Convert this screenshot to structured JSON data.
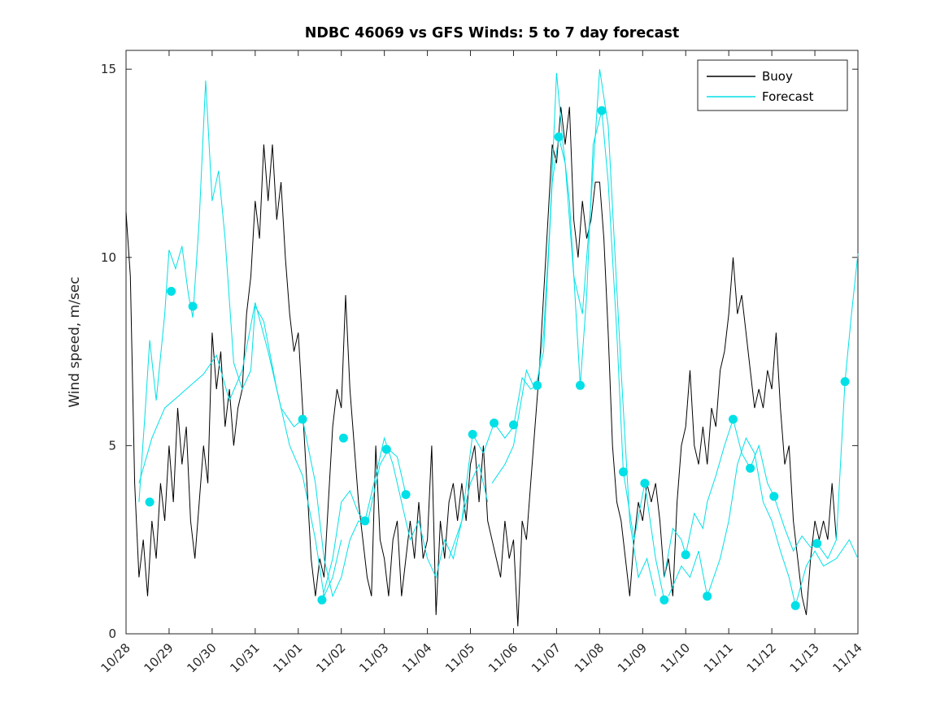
{
  "figure": {
    "background": "#ffffff",
    "axis_color": "#262626",
    "tick_label_color": "#262626"
  },
  "chart_data": {
    "type": "line",
    "title": "NDBC 46069 vs GFS Winds: 5 to 7 day forecast",
    "xlabel": "",
    "ylabel": "Wind speed, m/sec",
    "ylim": [
      0,
      15.5
    ],
    "yticks": [
      0,
      5,
      10,
      15
    ],
    "x_range_days": [
      0,
      17
    ],
    "x_tick_labels": [
      "10/28",
      "10/29",
      "10/30",
      "10/31",
      "11/01",
      "11/02",
      "11/03",
      "11/04",
      "11/05",
      "11/06",
      "11/07",
      "11/08",
      "11/09",
      "11/10",
      "11/11",
      "11/12",
      "11/13",
      "11/14"
    ],
    "x_tick_angle_deg": 45,
    "grid": false,
    "axis_color": "#262626",
    "legend": {
      "position": "top-right",
      "entries": [
        {
          "label": "Buoy",
          "color": "#000000"
        },
        {
          "label": "Forecast",
          "color": "#00e0e6"
        }
      ]
    },
    "series": [
      {
        "name": "Buoy",
        "type": "line",
        "color": "#000000",
        "units": "m/sec",
        "t0_days": 0,
        "dt_days": 0.1,
        "values": [
          11.2,
          9.5,
          4.0,
          1.5,
          2.5,
          1.0,
          3.0,
          2.0,
          4.0,
          3.0,
          5.0,
          3.5,
          6.0,
          4.5,
          5.5,
          3.0,
          2.0,
          3.5,
          5.0,
          4.0,
          8.0,
          6.5,
          7.5,
          5.5,
          6.5,
          5.0,
          6.0,
          6.5,
          8.5,
          9.5,
          11.5,
          10.5,
          13.0,
          11.5,
          13.0,
          11.0,
          12.0,
          10.0,
          8.5,
          7.5,
          8.0,
          6.0,
          4.0,
          2.0,
          1.0,
          2.0,
          1.5,
          3.5,
          5.5,
          6.5,
          6.0,
          9.0,
          6.5,
          5.0,
          3.5,
          2.5,
          1.5,
          1.0,
          5.0,
          2.5,
          2.0,
          1.0,
          2.5,
          3.0,
          1.0,
          2.0,
          3.0,
          2.0,
          3.5,
          2.0,
          2.5,
          5.0,
          0.5,
          3.0,
          2.0,
          3.5,
          4.0,
          3.0,
          4.0,
          3.0,
          4.5,
          5.0,
          3.5,
          5.0,
          3.0,
          2.5,
          2.0,
          1.5,
          3.0,
          2.0,
          2.5,
          0.2,
          3.0,
          2.5,
          4.0,
          5.5,
          7.0,
          9.0,
          11.0,
          13.0,
          12.5,
          14.0,
          13.0,
          14.0,
          11.0,
          10.0,
          11.5,
          10.5,
          11.0,
          12.0,
          12.0,
          10.5,
          8.0,
          5.0,
          3.5,
          3.0,
          2.0,
          1.0,
          2.5,
          3.5,
          3.0,
          4.0,
          3.5,
          4.0,
          3.0,
          1.5,
          2.0,
          1.0,
          3.5,
          5.0,
          5.5,
          7.0,
          5.0,
          4.5,
          5.5,
          4.5,
          6.0,
          5.5,
          7.0,
          7.5,
          8.5,
          10.0,
          8.5,
          9.0,
          8.0,
          7.0,
          6.0,
          6.5,
          6.0,
          7.0,
          6.5,
          8.0,
          6.0,
          4.5,
          5.0,
          3.0,
          2.0,
          1.0,
          0.5,
          2.0,
          3.0,
          2.5,
          3.0,
          2.5,
          4.0,
          2.5
        ]
      },
      {
        "name": "Forecast",
        "type": "multi-line",
        "color": "#00e0e6",
        "units": "m/sec",
        "lines": [
          [
            [
              0.3,
              3.5
            ],
            [
              0.45,
              6.0
            ],
            [
              0.55,
              7.8
            ],
            [
              0.7,
              6.2
            ],
            [
              0.9,
              8.5
            ],
            [
              1.0,
              10.2
            ],
            [
              1.15,
              9.7
            ],
            [
              1.3,
              10.3
            ],
            [
              1.45,
              9.0
            ],
            [
              1.55,
              8.4
            ],
            [
              1.7,
              11.0
            ],
            [
              1.85,
              14.7
            ],
            [
              2.0,
              11.5
            ],
            [
              2.15,
              12.3
            ],
            [
              2.3,
              10.5
            ],
            [
              2.5,
              7.2
            ],
            [
              2.7,
              6.5
            ],
            [
              2.9,
              7.0
            ],
            [
              3.0,
              8.7
            ],
            [
              3.2,
              8.3
            ],
            [
              3.5,
              6.5
            ],
            [
              3.8,
              5.0
            ],
            [
              4.1,
              4.2
            ],
            [
              4.4,
              2.5
            ],
            [
              4.6,
              1.0
            ],
            [
              4.8,
              1.5
            ],
            [
              5.0,
              2.5
            ]
          ],
          [
            [
              0.3,
              4.0
            ],
            [
              0.6,
              5.2
            ],
            [
              0.9,
              6.0
            ],
            [
              1.2,
              6.3
            ],
            [
              1.5,
              6.6
            ],
            [
              1.8,
              6.9
            ],
            [
              2.1,
              7.4
            ],
            [
              2.4,
              6.2
            ],
            [
              2.7,
              7.0
            ],
            [
              3.0,
              8.8
            ],
            [
              3.3,
              7.5
            ],
            [
              3.6,
              6.0
            ],
            [
              3.9,
              5.5
            ],
            [
              4.1,
              5.7
            ],
            [
              4.4,
              4.0
            ],
            [
              4.6,
              2.0
            ],
            [
              4.8,
              1.0
            ],
            [
              5.0,
              1.5
            ],
            [
              5.2,
              2.5
            ],
            [
              5.4,
              3.0
            ],
            [
              5.6,
              2.9
            ],
            [
              5.9,
              4.5
            ],
            [
              6.1,
              4.9
            ],
            [
              6.3,
              4.7
            ],
            [
              6.5,
              3.7
            ]
          ],
          [
            [
              4.55,
              0.9
            ],
            [
              4.8,
              2.0
            ],
            [
              5.0,
              3.5
            ],
            [
              5.2,
              3.8
            ],
            [
              5.4,
              3.2
            ],
            [
              5.55,
              3.0
            ],
            [
              5.8,
              4.2
            ],
            [
              6.0,
              5.2
            ],
            [
              6.2,
              4.5
            ],
            [
              6.4,
              3.5
            ],
            [
              6.6,
              2.5
            ],
            [
              6.8,
              3.0
            ],
            [
              7.0,
              2.0
            ],
            [
              7.2,
              1.5
            ],
            [
              7.4,
              2.5
            ],
            [
              7.6,
              2.0
            ],
            [
              7.8,
              3.0
            ],
            [
              8.0,
              4.0
            ],
            [
              8.2,
              4.5
            ],
            [
              8.4,
              3.5
            ]
          ],
          [
            [
              7.5,
              2.0
            ],
            [
              7.8,
              3.0
            ],
            [
              8.05,
              5.3
            ],
            [
              8.3,
              4.8
            ],
            [
              8.55,
              5.6
            ],
            [
              8.8,
              5.2
            ],
            [
              9.0,
              5.5
            ],
            [
              9.2,
              6.8
            ],
            [
              9.4,
              6.5
            ],
            [
              9.55,
              6.6
            ],
            [
              9.7,
              8.0
            ],
            [
              9.85,
              11.0
            ],
            [
              10.0,
              14.9
            ],
            [
              10.15,
              13.0
            ],
            [
              10.3,
              11.5
            ],
            [
              10.55,
              6.6
            ],
            [
              10.7,
              9.0
            ],
            [
              10.85,
              13.0
            ],
            [
              11.05,
              13.9
            ],
            [
              11.2,
              12.0
            ],
            [
              11.4,
              8.0
            ],
            [
              11.55,
              4.3
            ],
            [
              11.8,
              2.5
            ],
            [
              12.05,
              4.0
            ],
            [
              12.3,
              2.0
            ],
            [
              12.5,
              0.9
            ]
          ],
          [
            [
              8.5,
              4.0
            ],
            [
              8.8,
              4.5
            ],
            [
              9.0,
              5.0
            ],
            [
              9.3,
              7.0
            ],
            [
              9.5,
              6.5
            ],
            [
              9.7,
              7.5
            ],
            [
              9.9,
              12.0
            ],
            [
              10.05,
              13.2
            ],
            [
              10.2,
              12.5
            ],
            [
              10.4,
              9.5
            ],
            [
              10.6,
              8.5
            ],
            [
              10.8,
              11.5
            ],
            [
              11.0,
              15.0
            ],
            [
              11.2,
              13.5
            ],
            [
              11.5,
              7.0
            ],
            [
              11.7,
              3.0
            ],
            [
              11.9,
              1.5
            ],
            [
              12.1,
              2.0
            ],
            [
              12.3,
              1.0
            ]
          ],
          [
            [
              12.5,
              1.5
            ],
            [
              12.7,
              2.8
            ],
            [
              12.9,
              2.5
            ],
            [
              13.0,
              2.1
            ],
            [
              13.2,
              3.2
            ],
            [
              13.4,
              2.8
            ],
            [
              13.5,
              3.5
            ],
            [
              13.7,
              4.2
            ],
            [
              13.9,
              5.0
            ],
            [
              14.1,
              5.7
            ],
            [
              14.3,
              4.8
            ],
            [
              14.5,
              4.4
            ],
            [
              14.7,
              5.0
            ],
            [
              14.9,
              4.0
            ],
            [
              15.05,
              3.65
            ],
            [
              15.3,
              2.8
            ],
            [
              15.5,
              2.2
            ],
            [
              15.7,
              2.6
            ],
            [
              15.9,
              2.3
            ],
            [
              16.05,
              2.4
            ],
            [
              16.3,
              2.0
            ],
            [
              16.5,
              2.5
            ],
            [
              16.7,
              6.7
            ],
            [
              16.85,
              8.5
            ],
            [
              17.0,
              10.1
            ]
          ],
          [
            [
              12.6,
              1.0
            ],
            [
              12.9,
              1.8
            ],
            [
              13.1,
              1.5
            ],
            [
              13.3,
              2.2
            ],
            [
              13.5,
              1.0
            ],
            [
              13.8,
              2.0
            ],
            [
              14.0,
              3.0
            ],
            [
              14.2,
              4.5
            ],
            [
              14.4,
              5.2
            ],
            [
              14.6,
              4.8
            ],
            [
              14.8,
              3.5
            ],
            [
              15.0,
              3.0
            ],
            [
              15.2,
              2.2
            ],
            [
              15.4,
              1.5
            ],
            [
              15.55,
              0.75
            ],
            [
              15.8,
              1.8
            ],
            [
              16.0,
              2.2
            ],
            [
              16.2,
              1.8
            ],
            [
              16.5,
              2.0
            ],
            [
              16.8,
              2.5
            ],
            [
              17.0,
              2.0
            ]
          ]
        ]
      },
      {
        "name": "Forecast points",
        "type": "scatter",
        "color": "#00e0e6",
        "marker": "filled-circle",
        "points": [
          [
            0.55,
            3.5
          ],
          [
            1.05,
            9.1
          ],
          [
            1.55,
            8.7
          ],
          [
            4.1,
            5.7
          ],
          [
            4.55,
            0.9
          ],
          [
            5.05,
            5.2
          ],
          [
            5.55,
            3.0
          ],
          [
            6.05,
            4.9
          ],
          [
            6.5,
            3.7
          ],
          [
            8.05,
            5.3
          ],
          [
            8.55,
            5.6
          ],
          [
            9.0,
            5.55
          ],
          [
            9.55,
            6.6
          ],
          [
            10.05,
            13.2
          ],
          [
            10.55,
            6.6
          ],
          [
            11.05,
            13.9
          ],
          [
            11.55,
            4.3
          ],
          [
            12.05,
            4.0
          ],
          [
            12.5,
            0.9
          ],
          [
            13.0,
            2.1
          ],
          [
            13.5,
            1.0
          ],
          [
            14.1,
            5.7
          ],
          [
            14.5,
            4.4
          ],
          [
            15.05,
            3.65
          ],
          [
            15.55,
            0.75
          ],
          [
            16.05,
            2.4
          ],
          [
            16.7,
            6.7
          ]
        ]
      }
    ]
  }
}
